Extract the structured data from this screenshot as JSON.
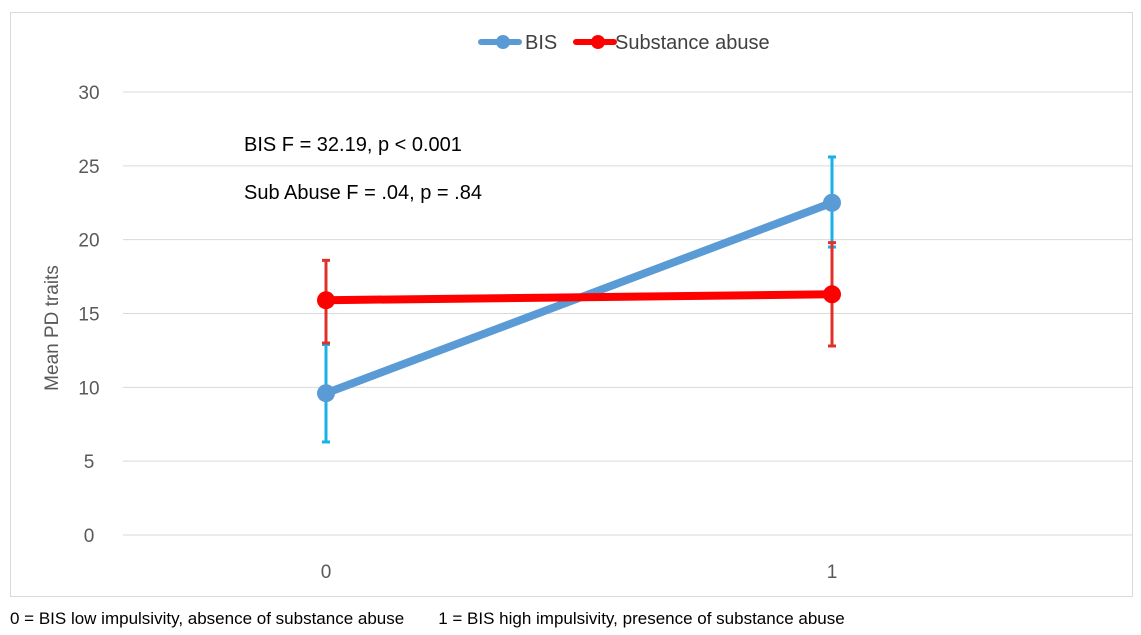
{
  "chart_data": {
    "type": "line",
    "categories": [
      "0",
      "1"
    ],
    "ylabel": "Mean PD traits",
    "ylim": [
      0,
      30
    ],
    "yticks": [
      0,
      5,
      10,
      15,
      20,
      25,
      30
    ],
    "grid": true,
    "legend_position": "top-center",
    "series": [
      {
        "name": "BIS",
        "color": "#5b9bd5",
        "error_color": "#1ab0e8",
        "values": [
          9.6,
          22.5
        ],
        "error_low": [
          6.3,
          19.5
        ],
        "error_high": [
          12.9,
          25.6
        ]
      },
      {
        "name": "Substance abuse",
        "color": "#ff0000",
        "error_color": "#e0302a",
        "values": [
          15.9,
          16.3
        ],
        "error_low": [
          13.0,
          12.8
        ],
        "error_high": [
          18.6,
          19.8
        ]
      }
    ],
    "annotations": [
      "BIS F = 32.19, p < 0.001",
      "Sub Abuse F = .04, p = .84"
    ]
  },
  "footnote": {
    "left": "0 = BIS low impulsivity, absence of substance abuse",
    "right": "1 = BIS high impulsivity, presence of substance abuse"
  }
}
